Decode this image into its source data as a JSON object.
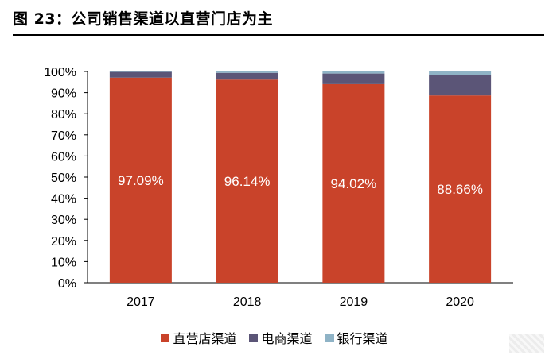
{
  "figure": {
    "title": "图 23：公司销售渠道以直营门店为主"
  },
  "colors": {
    "direct_store": "#c9432a",
    "ecommerce": "#5b5577",
    "bank": "#8fb3c6"
  },
  "chart_data": {
    "type": "bar",
    "stacked": true,
    "categories": [
      "2017",
      "2018",
      "2019",
      "2020"
    ],
    "series": [
      {
        "name": "直营店渠道",
        "values": [
          97.09,
          96.14,
          94.02,
          88.66
        ],
        "data_labels": [
          "97.09%",
          "96.14%",
          "94.02%",
          "88.66%"
        ]
      },
      {
        "name": "电商渠道",
        "values": [
          2.7,
          3.2,
          5.0,
          9.8
        ]
      },
      {
        "name": "银行渠道",
        "values": [
          0.21,
          0.66,
          0.98,
          1.54
        ]
      }
    ],
    "y_ticks": [
      "0%",
      "10%",
      "20%",
      "30%",
      "40%",
      "50%",
      "60%",
      "70%",
      "80%",
      "90%",
      "100%"
    ],
    "ylim": [
      0,
      100
    ],
    "grid": false,
    "legend_position": "bottom"
  }
}
